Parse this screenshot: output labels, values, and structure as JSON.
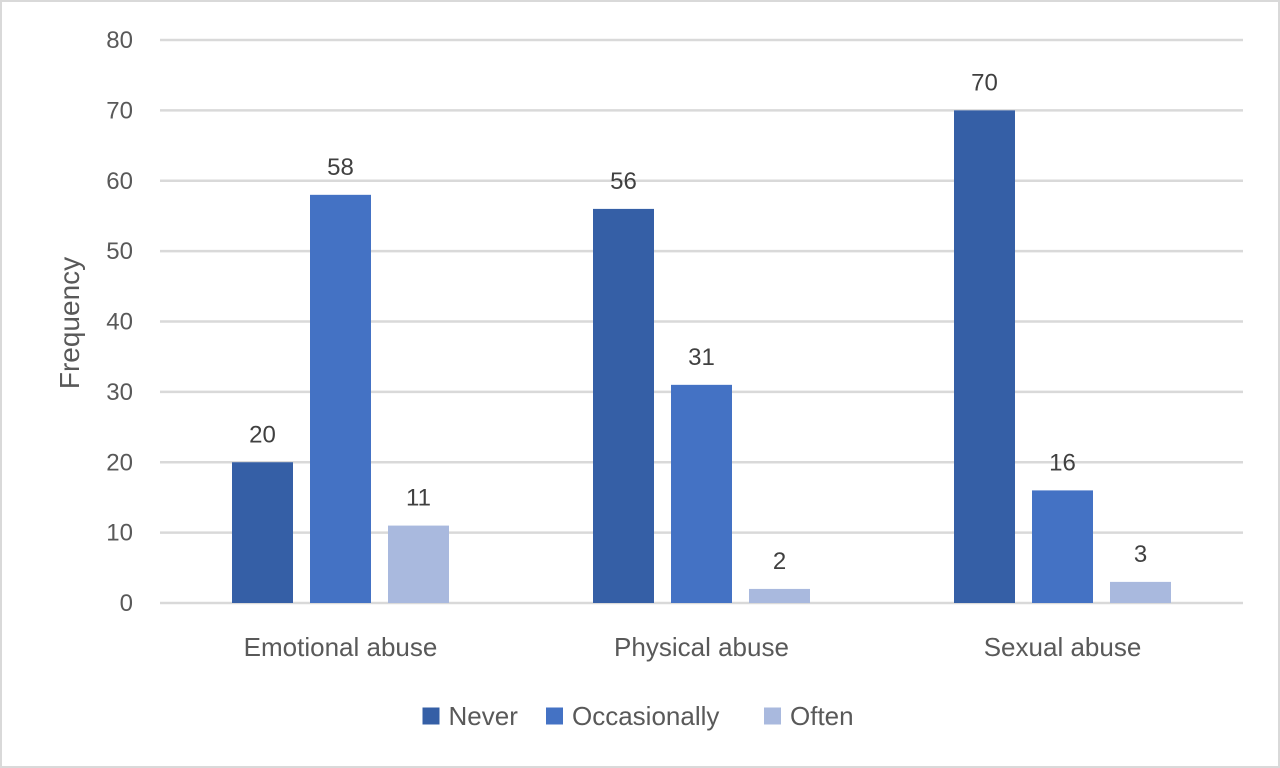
{
  "chart_data": {
    "type": "bar",
    "categories": [
      "Emotional abuse",
      "Physical abuse",
      "Sexual abuse"
    ],
    "series": [
      {
        "name": "Never",
        "values": [
          20,
          56,
          70
        ],
        "color": "#355fa6"
      },
      {
        "name": "Occasionally",
        "values": [
          58,
          31,
          16
        ],
        "color": "#4472c4"
      },
      {
        "name": "Often",
        "values": [
          11,
          2,
          3
        ],
        "color": "#a9b9de"
      }
    ],
    "ylabel": "Frequency",
    "xlabel": "",
    "ylim": [
      0,
      80
    ],
    "yticks": [
      0,
      10,
      20,
      30,
      40,
      50,
      60,
      70,
      80
    ],
    "grid": true,
    "legend": "bottom",
    "gridline_color": "#d9d9d9"
  }
}
